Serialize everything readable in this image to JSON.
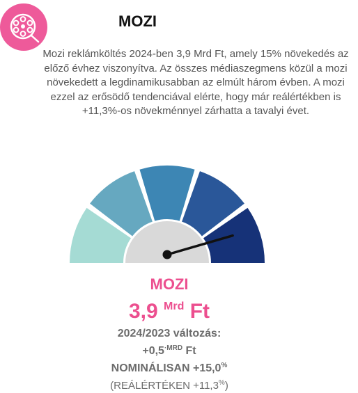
{
  "header": {
    "icon": "film-reel-icon",
    "title": "MOZI",
    "intro": "Mozi reklámköltés 2024-ben 3,9 Mrd Ft, amely 15% növekedés az előző évhez viszonyítva. Az összes médiaszegmens közül a mozi növekedett a legdinamikusabban az elmúlt három évben. A mozi ezzel az erősödő tendenciával elérte, hogy már reálértékben is +11,3%-os növekménnyel zárhatta a tavalyi évet."
  },
  "gauge": {
    "segment_colors": [
      "#a5dbd4",
      "#66a8c0",
      "#3d86b4",
      "#2a5799",
      "#163278"
    ],
    "hub_color": "#d9d9d9",
    "needle_color": "#111111",
    "needle_level": 0.91
  },
  "panel": {
    "title": "MOZI",
    "value": "3,9",
    "value_unit": "Mrd",
    "value_currency": "Ft",
    "change_label": "2024/2023 változás:",
    "change_value": "+0,5",
    "change_unit": "MRD",
    "change_currency": "Ft",
    "nominal_text": "NOMINÁLISAN +15,0",
    "nominal_unit": "%",
    "real_text": "(REÁLÉRTÉKEN +11,3",
    "real_unit": "%",
    "real_close": ")"
  }
}
